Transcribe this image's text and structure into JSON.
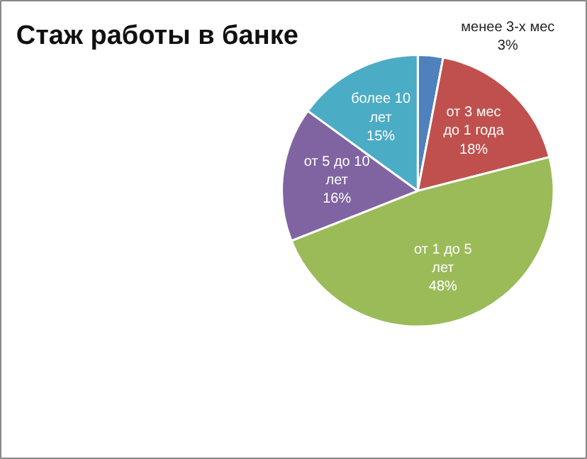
{
  "chart_data": {
    "type": "pie",
    "title": "Стаж работы в банке",
    "categories": [
      "менее 3-х мес",
      "от 3 мес до 1 года",
      "от 1 до 5 лет",
      "от 5 до 10 лет",
      "более 10 лет"
    ],
    "values": [
      3,
      18,
      48,
      16,
      15
    ],
    "value_labels": [
      "3%",
      "18%",
      "48%",
      "16%",
      "15%"
    ],
    "colors": [
      "#4f81bd",
      "#c0504d",
      "#9bbb59",
      "#8064a2",
      "#4bacc6"
    ],
    "legend": false
  }
}
